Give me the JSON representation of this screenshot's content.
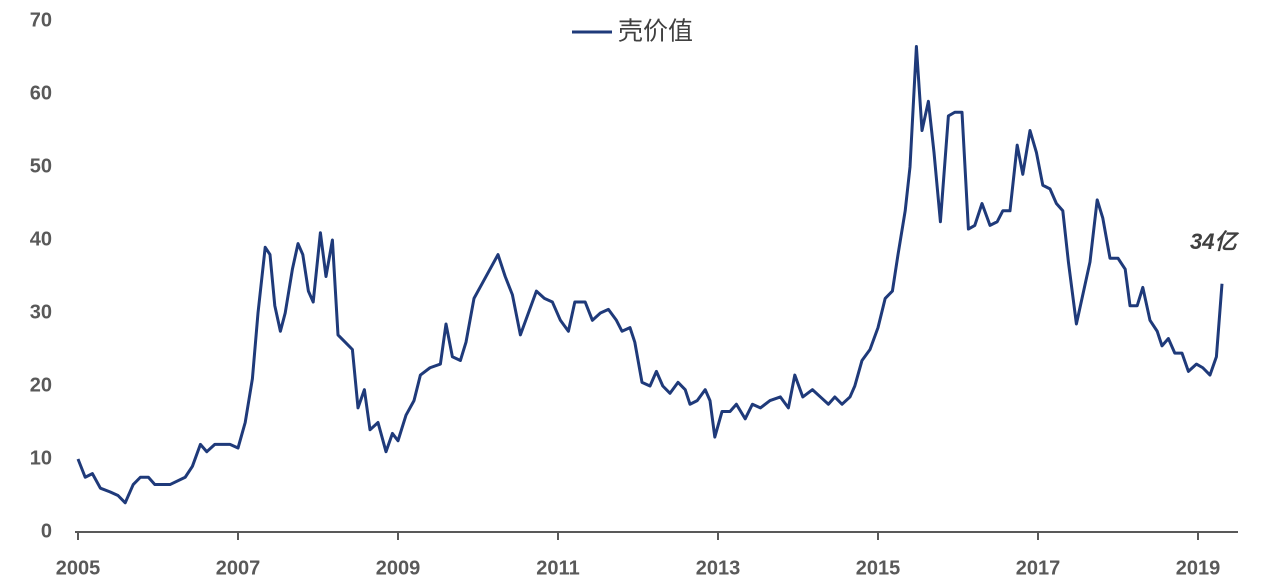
{
  "chart_data": {
    "type": "line",
    "x": [
      2005.0,
      2005.09,
      2005.18,
      2005.28,
      2005.4,
      2005.5,
      2005.59,
      2005.69,
      2005.78,
      2005.88,
      2005.96,
      2006.15,
      2006.34,
      2006.43,
      2006.53,
      2006.61,
      2006.71,
      2006.8,
      2006.9,
      2007.0,
      2007.09,
      2007.18,
      2007.25,
      2007.34,
      2007.4,
      2007.46,
      2007.53,
      2007.59,
      2007.68,
      2007.75,
      2007.81,
      2007.88,
      2007.94,
      2008.03,
      2008.1,
      2008.18,
      2008.25,
      2008.34,
      2008.43,
      2008.5,
      2008.58,
      2008.65,
      2008.75,
      2008.85,
      2008.93,
      2009.0,
      2009.1,
      2009.2,
      2009.28,
      2009.4,
      2009.53,
      2009.6,
      2009.68,
      2009.78,
      2009.85,
      2009.95,
      2010.05,
      2010.15,
      2010.25,
      2010.34,
      2010.43,
      2010.53,
      2010.63,
      2010.73,
      2010.83,
      2010.93,
      2011.03,
      2011.13,
      2011.21,
      2011.34,
      2011.43,
      2011.53,
      2011.63,
      2011.73,
      2011.8,
      2011.9,
      2011.96,
      2012.05,
      2012.15,
      2012.23,
      2012.31,
      2012.4,
      2012.5,
      2012.59,
      2012.65,
      2012.74,
      2012.84,
      2012.9,
      2012.96,
      2013.05,
      2013.15,
      2013.23,
      2013.34,
      2013.43,
      2013.53,
      2013.65,
      2013.78,
      2013.88,
      2013.96,
      2014.06,
      2014.18,
      2014.28,
      2014.38,
      2014.46,
      2014.55,
      2014.65,
      2014.71,
      2014.8,
      2014.9,
      2015.0,
      2015.09,
      2015.18,
      2015.25,
      2015.34,
      2015.4,
      2015.48,
      2015.55,
      2015.63,
      2015.7,
      2015.78,
      2015.88,
      2015.96,
      2016.05,
      2016.13,
      2016.21,
      2016.3,
      2016.4,
      2016.49,
      2016.56,
      2016.65,
      2016.74,
      2016.81,
      2016.9,
      2016.98,
      2017.06,
      2017.15,
      2017.23,
      2017.31,
      2017.38,
      2017.48,
      2017.55,
      2017.65,
      2017.74,
      2017.81,
      2017.9,
      2018.0,
      2018.09,
      2018.15,
      2018.24,
      2018.31,
      2018.4,
      2018.49,
      2018.55,
      2018.63,
      2018.71,
      2018.8,
      2018.88,
      2018.98,
      2019.06,
      2019.15,
      2019.23,
      2019.3
    ],
    "series": [
      {
        "name": "壳价值",
        "color": "#1f3a7a",
        "values": [
          10,
          7.5,
          8,
          6,
          5.5,
          5,
          4,
          6.5,
          7.5,
          7.5,
          6.5,
          6.5,
          7.5,
          9,
          12,
          11,
          12,
          12,
          12,
          11.5,
          15,
          21,
          30,
          39,
          38,
          31,
          27.5,
          30,
          36,
          39.5,
          38,
          33,
          31.5,
          41,
          35,
          40,
          27,
          26,
          25,
          17,
          19.5,
          14,
          15,
          11,
          13.5,
          12.5,
          16,
          18,
          21.5,
          22.5,
          23,
          28.5,
          24,
          23.5,
          26,
          32,
          34,
          36,
          38,
          35,
          32.5,
          27,
          30,
          33,
          32,
          31.5,
          29,
          27.5,
          31.5,
          31.5,
          29,
          30,
          30.5,
          29,
          27.5,
          28,
          26,
          20.5,
          20,
          22,
          20,
          19,
          20.5,
          19.5,
          17.5,
          18,
          19.5,
          18,
          13,
          16.5,
          16.5,
          17.5,
          15.5,
          17.5,
          17,
          18,
          18.5,
          17,
          21.5,
          18.5,
          19.5,
          18.5,
          17.5,
          18.5,
          17.5,
          18.5,
          20,
          23.5,
          25,
          28,
          32,
          33,
          38,
          44,
          50,
          66.5,
          55,
          59,
          52,
          42.5,
          57,
          57.5,
          57.5,
          41.5,
          42,
          45,
          42,
          42.5,
          44,
          44,
          53,
          49,
          55,
          52,
          47.5,
          47,
          45,
          44,
          37,
          28.5,
          32,
          37,
          45.5,
          43,
          37.5,
          37.5,
          36,
          31,
          31,
          33.5,
          29,
          27.5,
          25.5,
          26.5,
          24.5,
          24.5,
          22,
          23,
          22.5,
          21.5,
          24,
          34
        ]
      }
    ],
    "annotation": "34亿",
    "xlim": [
      2005,
      2019.5
    ],
    "xticks": [
      2005,
      2007,
      2009,
      2011,
      2013,
      2015,
      2017,
      2019
    ],
    "ylim": [
      0,
      70
    ],
    "yticks": [
      0,
      10,
      20,
      30,
      40,
      50,
      60,
      70
    ]
  }
}
